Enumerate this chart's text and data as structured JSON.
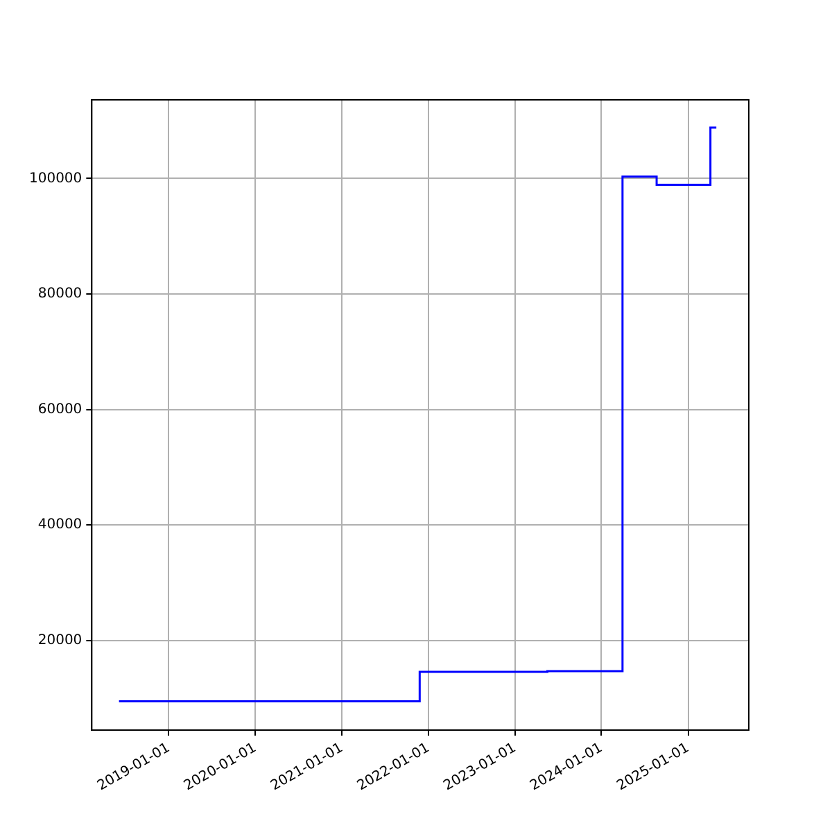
{
  "chart_data": {
    "type": "step",
    "x": [
      "2018-06-05",
      "2021-11-25",
      "2023-05-18",
      "2024-03-30",
      "2024-08-21",
      "2025-04-05",
      "2025-04-30"
    ],
    "series": [
      {
        "color": "#0000ff",
        "values": [
          9500,
          14600,
          14700,
          100300,
          98900,
          108800,
          108800
        ]
      }
    ],
    "xlim": [
      "2018-02-10",
      "2025-09-14"
    ],
    "xticks": [
      "2019-01-01",
      "2020-01-01",
      "2021-01-01",
      "2022-01-01",
      "2023-01-01",
      "2024-01-01",
      "2025-01-01"
    ],
    "ylim": [
      4500,
      113600
    ],
    "yticks": [
      20000,
      40000,
      60000,
      80000,
      100000
    ],
    "grid": true,
    "legend": false
  }
}
